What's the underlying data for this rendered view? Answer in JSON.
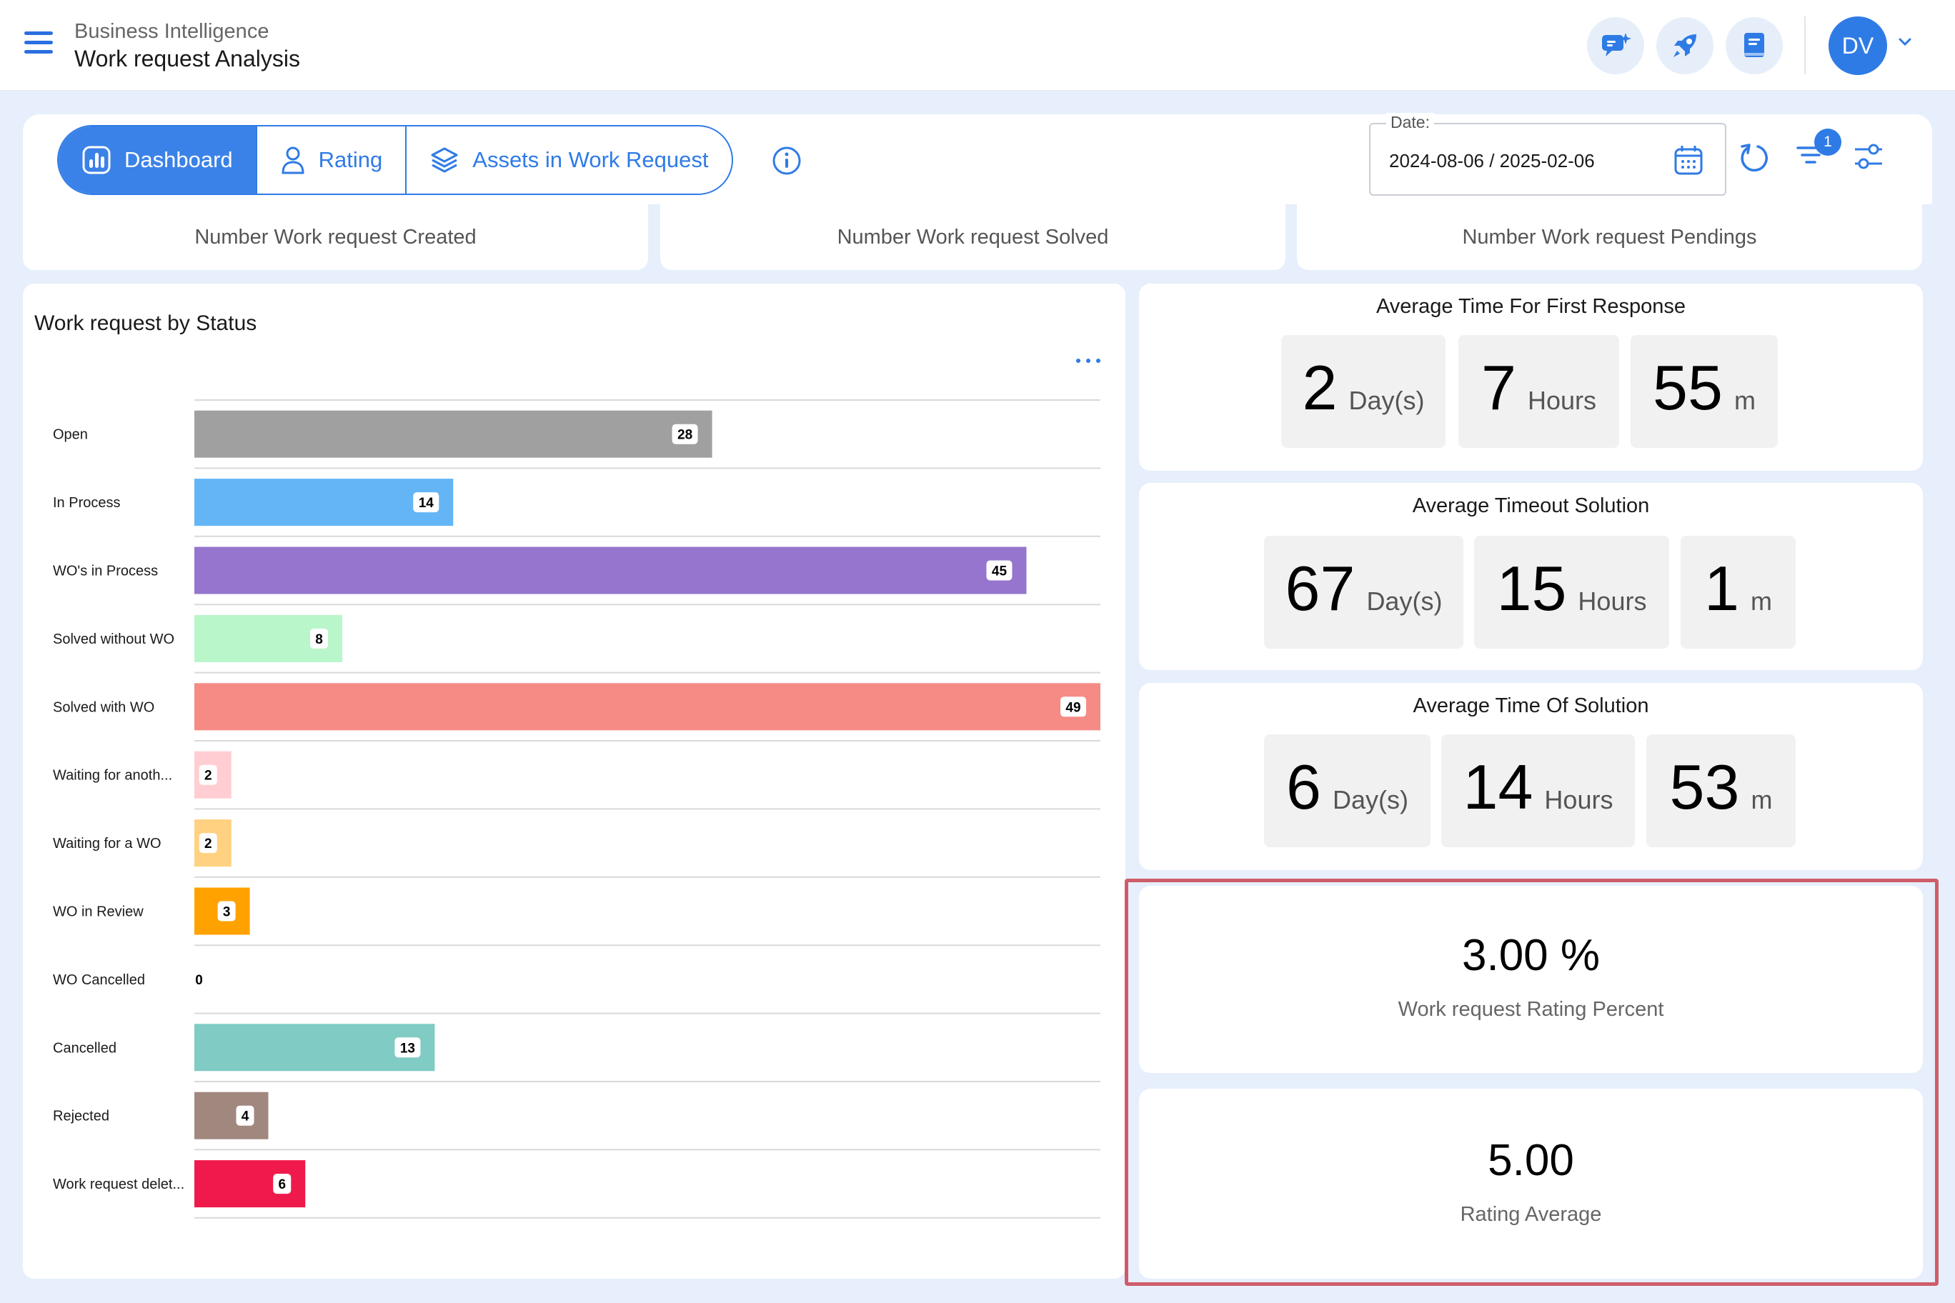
{
  "header": {
    "breadcrumb_parent": "Business Intelligence",
    "title": "Work request Analysis",
    "avatar_initials": "DV"
  },
  "tabs": [
    {
      "label": "Dashboard",
      "active": true,
      "icon": "chart-icon"
    },
    {
      "label": "Rating",
      "active": false,
      "icon": "user-icon"
    },
    {
      "label": "Assets in Work Request",
      "active": false,
      "icon": "layers-icon"
    }
  ],
  "filters": {
    "date_label": "Date:",
    "date_value": "2024-08-06 / 2025-02-06",
    "filter_badge": "1"
  },
  "kpis": [
    {
      "label": "Number Work request Created"
    },
    {
      "label": "Number Work request Solved"
    },
    {
      "label": "Number Work request Pendings"
    }
  ],
  "chart_title": "Work request by Status",
  "chart_data": {
    "type": "bar",
    "orientation": "horizontal",
    "categories": [
      "Open",
      "In Process",
      "WO's in Process",
      "Solved without WO",
      "Solved with WO",
      "Waiting for anoth...",
      "Waiting for a WO",
      "WO in Review",
      "WO Cancelled",
      "Cancelled",
      "Rejected",
      "Work request delet..."
    ],
    "values": [
      28,
      14,
      45,
      8,
      49,
      2,
      2,
      3,
      0,
      13,
      4,
      6
    ],
    "colors": [
      "#a0a0a0",
      "#64b5f6",
      "#9575cd",
      "#b9f6ca",
      "#f68b85",
      "#ffcdd2",
      "#ffd180",
      "#ffa200",
      "#cccccc",
      "#80cbc4",
      "#a1887f",
      "#f0194b"
    ],
    "xlim": [
      0,
      49
    ],
    "grid": true,
    "legend": "none"
  },
  "metrics": {
    "first_response": {
      "title": "Average Time For First Response",
      "days": "2",
      "days_unit": "Day(s)",
      "hours": "7",
      "hours_unit": "Hours",
      "minutes": "55",
      "minutes_unit": "m"
    },
    "timeout_solution": {
      "title": "Average Timeout Solution",
      "days": "67",
      "days_unit": "Day(s)",
      "hours": "15",
      "hours_unit": "Hours",
      "minutes": "1",
      "minutes_unit": "m"
    },
    "time_of_solution": {
      "title": "Average Time Of Solution",
      "days": "6",
      "days_unit": "Day(s)",
      "hours": "14",
      "hours_unit": "Hours",
      "minutes": "53",
      "minutes_unit": "m"
    },
    "rating_percent": {
      "value": "3.00 %",
      "label": "Work request Rating Percent"
    },
    "rating_average": {
      "value": "5.00",
      "label": "Rating Average"
    }
  },
  "colors": {
    "accent": "#2f7be6",
    "highlight_border": "#cf5c69",
    "background": "#e6effb"
  }
}
